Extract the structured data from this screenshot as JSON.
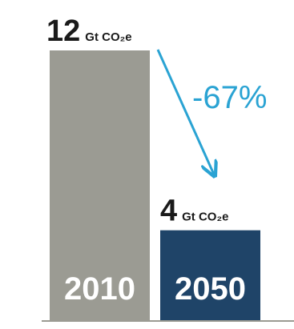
{
  "chart_data": {
    "type": "bar",
    "categories": [
      "2010",
      "2050"
    ],
    "values": [
      12,
      4
    ],
    "value_labels": [
      {
        "number": "12",
        "unit": "Gt CO₂e"
      },
      {
        "number": "4",
        "unit": "Gt CO₂e"
      }
    ],
    "change_label": "-67%",
    "title": "",
    "xlabel": "",
    "ylabel": "",
    "ylim": [
      0,
      12
    ],
    "grid": false,
    "colors": {
      "bars": [
        "#9b9b93",
        "#1f4468"
      ],
      "arrow": "#2aa3d3",
      "text": "#1a1a1a",
      "baseline": "#9b9b93"
    }
  }
}
